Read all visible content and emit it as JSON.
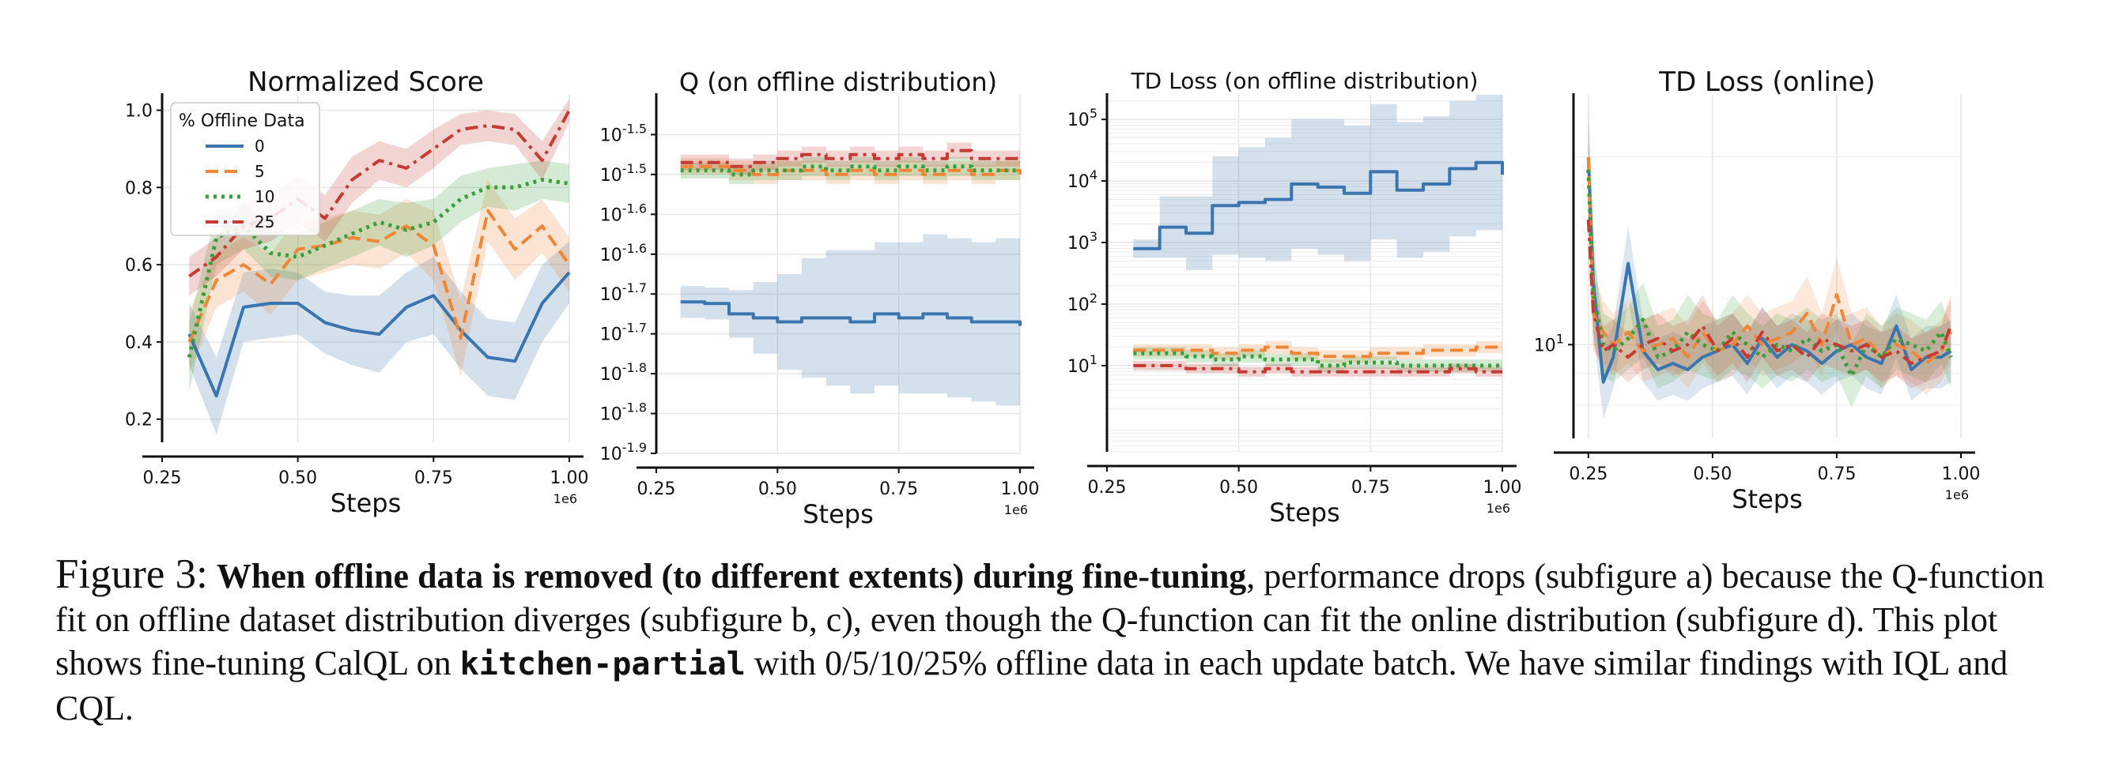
{
  "chart_data": [
    {
      "type": "line",
      "title": "Normalized Score",
      "xlabel": "Steps",
      "xscale_label": "1e6",
      "ylabel": "",
      "xlim": [
        0.25,
        1.0
      ],
      "ylim": [
        0.14,
        1.04
      ],
      "yscale": "linear",
      "xticks": [
        "0.25",
        "0.50",
        "0.75",
        "1.00"
      ],
      "yticks": [
        {
          "v": 0.2,
          "label": "0.2"
        },
        {
          "v": 0.4,
          "label": "0.4"
        },
        {
          "v": 0.6,
          "label": "0.6"
        },
        {
          "v": 0.8,
          "label": "0.8"
        },
        {
          "v": 1.0,
          "label": "1.0"
        }
      ],
      "grid": true,
      "legend": {
        "title": "% Offline Data",
        "placement": "upper-left",
        "entries": [
          "0",
          "5",
          "10",
          "25"
        ]
      },
      "step": false,
      "x": [
        0.3,
        0.35,
        0.4,
        0.45,
        0.5,
        0.55,
        0.6,
        0.65,
        0.7,
        0.75,
        0.8,
        0.85,
        0.9,
        0.95,
        1.0
      ],
      "series": [
        {
          "name": "0",
          "color": "#3b75af",
          "dash": "",
          "lw": 4,
          "values": [
            0.42,
            0.26,
            0.49,
            0.5,
            0.5,
            0.45,
            0.43,
            0.42,
            0.49,
            0.52,
            0.43,
            0.36,
            0.35,
            0.5,
            0.58
          ],
          "spread": [
            0.08,
            0.1,
            0.09,
            0.09,
            0.08,
            0.08,
            0.09,
            0.1,
            0.09,
            0.1,
            0.1,
            0.1,
            0.1,
            0.1,
            0.08
          ]
        },
        {
          "name": "5",
          "color": "#ef8636",
          "dash": "16,8",
          "lw": 4,
          "values": [
            0.4,
            0.56,
            0.6,
            0.55,
            0.64,
            0.65,
            0.67,
            0.66,
            0.7,
            0.65,
            0.41,
            0.74,
            0.64,
            0.7,
            0.6
          ],
          "spread": [
            0.08,
            0.07,
            0.07,
            0.08,
            0.08,
            0.07,
            0.07,
            0.07,
            0.07,
            0.09,
            0.1,
            0.08,
            0.08,
            0.07,
            0.07
          ]
        },
        {
          "name": "10",
          "color": "#3a9e3a",
          "dash": "4,6",
          "lw": 5,
          "values": [
            0.36,
            0.67,
            0.7,
            0.63,
            0.62,
            0.65,
            0.68,
            0.71,
            0.69,
            0.71,
            0.77,
            0.8,
            0.8,
            0.82,
            0.81
          ],
          "spread": [
            0.09,
            0.07,
            0.06,
            0.06,
            0.06,
            0.06,
            0.06,
            0.06,
            0.07,
            0.06,
            0.06,
            0.05,
            0.06,
            0.05,
            0.05
          ]
        },
        {
          "name": "25",
          "color": "#c53a32",
          "dash": "16,7,4,7",
          "lw": 4,
          "values": [
            0.57,
            0.62,
            0.7,
            0.72,
            0.77,
            0.72,
            0.82,
            0.87,
            0.85,
            0.9,
            0.95,
            0.96,
            0.95,
            0.87,
            1.0
          ],
          "spread": [
            0.05,
            0.05,
            0.06,
            0.06,
            0.06,
            0.06,
            0.06,
            0.05,
            0.05,
            0.05,
            0.04,
            0.04,
            0.04,
            0.05,
            0.03
          ]
        }
      ]
    },
    {
      "type": "line",
      "title": "Q (on offline distribution)",
      "xlabel": "Steps",
      "xscale_label": "1e6",
      "ylabel": "",
      "xlim": [
        0.25,
        1.0
      ],
      "ylim": [
        -1.9,
        -1.45
      ],
      "yscale": "log",
      "xticks": [
        "0.25",
        "0.50",
        "0.75",
        "1.00"
      ],
      "yticks": [
        {
          "v": -1.5,
          "label": "10^-1.5"
        },
        {
          "v": -1.55,
          "label": "10^-1.5"
        },
        {
          "v": -1.6,
          "label": "10^-1.6"
        },
        {
          "v": -1.65,
          "label": "10^-1.6"
        },
        {
          "v": -1.7,
          "label": "10^-1.7"
        },
        {
          "v": -1.75,
          "label": "10^-1.7"
        },
        {
          "v": -1.8,
          "label": "10^-1.8"
        },
        {
          "v": -1.85,
          "label": "10^-1.8"
        },
        {
          "v": -1.9,
          "label": "10^-1.9"
        }
      ],
      "grid": true,
      "step": true,
      "x": [
        0.3,
        0.35,
        0.4,
        0.45,
        0.5,
        0.55,
        0.6,
        0.65,
        0.7,
        0.75,
        0.8,
        0.85,
        0.9,
        0.95,
        1.0
      ],
      "series": [
        {
          "name": "0",
          "color": "#3b75af",
          "dash": "",
          "lw": 4,
          "values": [
            -1.71,
            -1.712,
            -1.725,
            -1.73,
            -1.735,
            -1.73,
            -1.73,
            -1.735,
            -1.725,
            -1.73,
            -1.725,
            -1.73,
            -1.735,
            -1.735,
            -1.74
          ],
          "spread": [
            0.02,
            0.02,
            0.03,
            0.045,
            0.06,
            0.075,
            0.085,
            0.09,
            0.09,
            0.095,
            0.1,
            0.1,
            0.1,
            0.105,
            0.1
          ]
        },
        {
          "name": "5",
          "color": "#ef8636",
          "dash": "16,8",
          "lw": 4,
          "values": [
            -1.54,
            -1.54,
            -1.545,
            -1.55,
            -1.545,
            -1.545,
            -1.55,
            -1.545,
            -1.55,
            -1.545,
            -1.55,
            -1.545,
            -1.55,
            -1.545,
            -1.55
          ],
          "spread": [
            0.01,
            0.01,
            0.012,
            0.012,
            0.012,
            0.012,
            0.012,
            0.012,
            0.012,
            0.012,
            0.012,
            0.012,
            0.012,
            0.012,
            0.012
          ]
        },
        {
          "name": "10",
          "color": "#3a9e3a",
          "dash": "4,6",
          "lw": 5,
          "values": [
            -1.545,
            -1.545,
            -1.55,
            -1.545,
            -1.545,
            -1.54,
            -1.545,
            -1.54,
            -1.545,
            -1.54,
            -1.545,
            -1.54,
            -1.545,
            -1.545,
            -1.545
          ],
          "spread": [
            0.01,
            0.01,
            0.012,
            0.012,
            0.012,
            0.012,
            0.012,
            0.012,
            0.012,
            0.012,
            0.012,
            0.012,
            0.012,
            0.012,
            0.012
          ]
        },
        {
          "name": "25",
          "color": "#c53a32",
          "dash": "16,7,4,7",
          "lw": 4,
          "values": [
            -1.535,
            -1.535,
            -1.54,
            -1.535,
            -1.53,
            -1.525,
            -1.53,
            -1.525,
            -1.53,
            -1.525,
            -1.53,
            -1.52,
            -1.53,
            -1.53,
            -1.53
          ],
          "spread": [
            0.01,
            0.01,
            0.01,
            0.01,
            0.01,
            0.01,
            0.01,
            0.01,
            0.01,
            0.01,
            0.01,
            0.01,
            0.01,
            0.01,
            0.01
          ]
        }
      ]
    },
    {
      "type": "line",
      "title": "TD Loss (on offline distribution)",
      "xlabel": "Steps",
      "xscale_label": "1e6",
      "ylabel": "",
      "xlim": [
        0.25,
        1.0
      ],
      "ylim": [
        -0.4,
        5.4
      ],
      "yscale": "log",
      "xticks": [
        "0.25",
        "0.50",
        "0.75",
        "1.00"
      ],
      "yticks": [
        {
          "v": 1,
          "label": "10^1"
        },
        {
          "v": 2,
          "label": "10^2"
        },
        {
          "v": 3,
          "label": "10^3"
        },
        {
          "v": 4,
          "label": "10^4"
        },
        {
          "v": 5,
          "label": "10^5"
        }
      ],
      "grid": true,
      "step": true,
      "x": [
        0.3,
        0.35,
        0.4,
        0.45,
        0.5,
        0.55,
        0.6,
        0.65,
        0.7,
        0.75,
        0.8,
        0.85,
        0.9,
        0.95,
        1.0
      ],
      "series": [
        {
          "name": "0",
          "color": "#3b75af",
          "dash": "",
          "lw": 4,
          "values": [
            2.9,
            3.25,
            3.15,
            3.6,
            3.65,
            3.7,
            3.95,
            3.9,
            3.8,
            4.15,
            3.85,
            3.95,
            4.2,
            4.3,
            4.1
          ],
          "spread": [
            0.15,
            0.5,
            0.6,
            0.8,
            0.9,
            1.0,
            1.05,
            1.1,
            1.1,
            1.1,
            1.1,
            1.1,
            1.1,
            1.1,
            1.0
          ]
        },
        {
          "name": "5",
          "color": "#ef8636",
          "dash": "16,8",
          "lw": 4,
          "values": [
            1.25,
            1.25,
            1.25,
            1.2,
            1.25,
            1.3,
            1.2,
            1.15,
            1.15,
            1.2,
            1.2,
            1.25,
            1.25,
            1.3,
            1.3
          ],
          "spread": [
            0.1,
            0.1,
            0.1,
            0.1,
            0.1,
            0.1,
            0.1,
            0.1,
            0.1,
            0.1,
            0.1,
            0.1,
            0.1,
            0.1,
            0.1
          ]
        },
        {
          "name": "10",
          "color": "#3a9e3a",
          "dash": "4,6",
          "lw": 5,
          "values": [
            1.2,
            1.2,
            1.15,
            1.1,
            1.15,
            1.1,
            1.1,
            1.0,
            1.05,
            1.05,
            1.0,
            1.0,
            1.0,
            1.0,
            1.0
          ],
          "spread": [
            0.1,
            0.1,
            0.1,
            0.1,
            0.1,
            0.1,
            0.1,
            0.1,
            0.1,
            0.1,
            0.1,
            0.1,
            0.1,
            0.1,
            0.1
          ]
        },
        {
          "name": "25",
          "color": "#c53a32",
          "dash": "16,7,4,7",
          "lw": 4,
          "values": [
            1.0,
            1.0,
            0.95,
            0.95,
            0.9,
            0.95,
            0.9,
            0.9,
            0.9,
            0.9,
            0.9,
            0.9,
            0.95,
            0.9,
            0.9
          ],
          "spread": [
            0.08,
            0.08,
            0.08,
            0.08,
            0.08,
            0.08,
            0.08,
            0.08,
            0.08,
            0.08,
            0.08,
            0.08,
            0.08,
            0.08,
            0.08
          ]
        }
      ]
    },
    {
      "type": "line",
      "title": "TD Loss (online)",
      "xlabel": "Steps",
      "xscale_label": "1e6",
      "ylabel": "",
      "xlim": [
        0.22,
        1.0
      ],
      "ylim": [
        0.85,
        1.4
      ],
      "yscale": "log",
      "xticks": [
        "0.25",
        "0.50",
        "0.75",
        "1.00"
      ],
      "yticks": [
        {
          "v": 1,
          "label": "10^1"
        }
      ],
      "grid": true,
      "step": false,
      "x": [
        0.25,
        0.26,
        0.28,
        0.3,
        0.33,
        0.36,
        0.39,
        0.42,
        0.45,
        0.48,
        0.51,
        0.54,
        0.57,
        0.6,
        0.63,
        0.66,
        0.69,
        0.72,
        0.75,
        0.78,
        0.81,
        0.84,
        0.87,
        0.9,
        0.93,
        0.96,
        0.98
      ],
      "series": [
        {
          "name": "0",
          "color": "#3b75af",
          "dash": "",
          "lw": 4,
          "values": [
            1.3,
            1.1,
            0.94,
            0.98,
            1.13,
            0.99,
            0.96,
            0.97,
            0.96,
            0.98,
            0.99,
            1.0,
            0.97,
            1.01,
            0.98,
            1.0,
            0.99,
            0.97,
            0.99,
            1.0,
            0.98,
            0.97,
            1.03,
            0.96,
            0.98,
            0.98,
            0.99
          ],
          "spread": [
            0.08,
            0.08,
            0.06,
            0.05,
            0.06,
            0.05,
            0.05,
            0.05,
            0.05,
            0.05,
            0.05,
            0.05,
            0.05,
            0.05,
            0.05,
            0.05,
            0.05,
            0.05,
            0.05,
            0.05,
            0.05,
            0.05,
            0.05,
            0.05,
            0.05,
            0.05,
            0.05
          ]
        },
        {
          "name": "5",
          "color": "#ef8636",
          "dash": "16,8",
          "lw": 4,
          "values": [
            1.3,
            1.05,
            1.02,
            1.0,
            1.02,
            0.99,
            1.0,
            1.01,
            0.98,
            1.02,
            0.99,
            1.0,
            1.03,
            1.0,
            1.01,
            1.02,
            1.05,
            1.0,
            1.08,
            1.0,
            1.01,
            0.98,
            1.0,
            0.99,
            0.97,
            0.99,
            1.02
          ],
          "spread": [
            0.07,
            0.06,
            0.05,
            0.05,
            0.05,
            0.05,
            0.05,
            0.05,
            0.05,
            0.05,
            0.05,
            0.05,
            0.05,
            0.05,
            0.05,
            0.05,
            0.06,
            0.05,
            0.06,
            0.05,
            0.05,
            0.05,
            0.05,
            0.05,
            0.05,
            0.05,
            0.05
          ]
        },
        {
          "name": "10",
          "color": "#3a9e3a",
          "dash": "4,6",
          "lw": 5,
          "values": [
            1.28,
            1.08,
            1.0,
            0.99,
            1.01,
            1.04,
            0.98,
            0.99,
            1.02,
            1.0,
            0.99,
            1.02,
            1.0,
            0.98,
            1.0,
            0.99,
            1.01,
            0.99,
            1.0,
            0.95,
            1.0,
            0.98,
            1.01,
            1.0,
            0.99,
            1.02,
            0.98
          ],
          "spread": [
            0.08,
            0.06,
            0.05,
            0.05,
            0.05,
            0.06,
            0.05,
            0.05,
            0.06,
            0.05,
            0.05,
            0.06,
            0.05,
            0.05,
            0.05,
            0.05,
            0.05,
            0.05,
            0.05,
            0.05,
            0.05,
            0.05,
            0.05,
            0.05,
            0.05,
            0.05,
            0.05
          ]
        },
        {
          "name": "25",
          "color": "#c53a32",
          "dash": "16,7,4,7",
          "lw": 4,
          "values": [
            1.2,
            1.05,
            0.99,
            1.0,
            0.98,
            1.0,
            1.01,
            0.99,
            1.0,
            1.03,
            0.99,
            1.01,
            0.98,
            1.02,
            0.99,
            1.0,
            0.98,
            1.01,
            1.0,
            0.99,
            1.0,
            0.98,
            0.99,
            0.97,
            0.98,
            0.99,
            1.03
          ],
          "spread": [
            0.06,
            0.05,
            0.04,
            0.04,
            0.04,
            0.04,
            0.04,
            0.04,
            0.04,
            0.05,
            0.04,
            0.04,
            0.04,
            0.04,
            0.04,
            0.04,
            0.04,
            0.04,
            0.04,
            0.04,
            0.04,
            0.04,
            0.04,
            0.04,
            0.04,
            0.04,
            0.05
          ]
        }
      ]
    }
  ],
  "caption": {
    "label": "Figure 3:",
    "bold_lead": "When offline data is removed (to different extents) during fine-tuning",
    "text_1": ", performance drops (subfigure a) because the Q-function fit on offline dataset distribution diverges (subfigure b, c), even though the Q-function can fit the online distribution (subfigure d). This plot shows fine-tuning CalQL on ",
    "code": "kitchen-partial",
    "text_2": " with 0/5/10/25% offline data in each update batch. We have similar findings with IQL and CQL."
  }
}
